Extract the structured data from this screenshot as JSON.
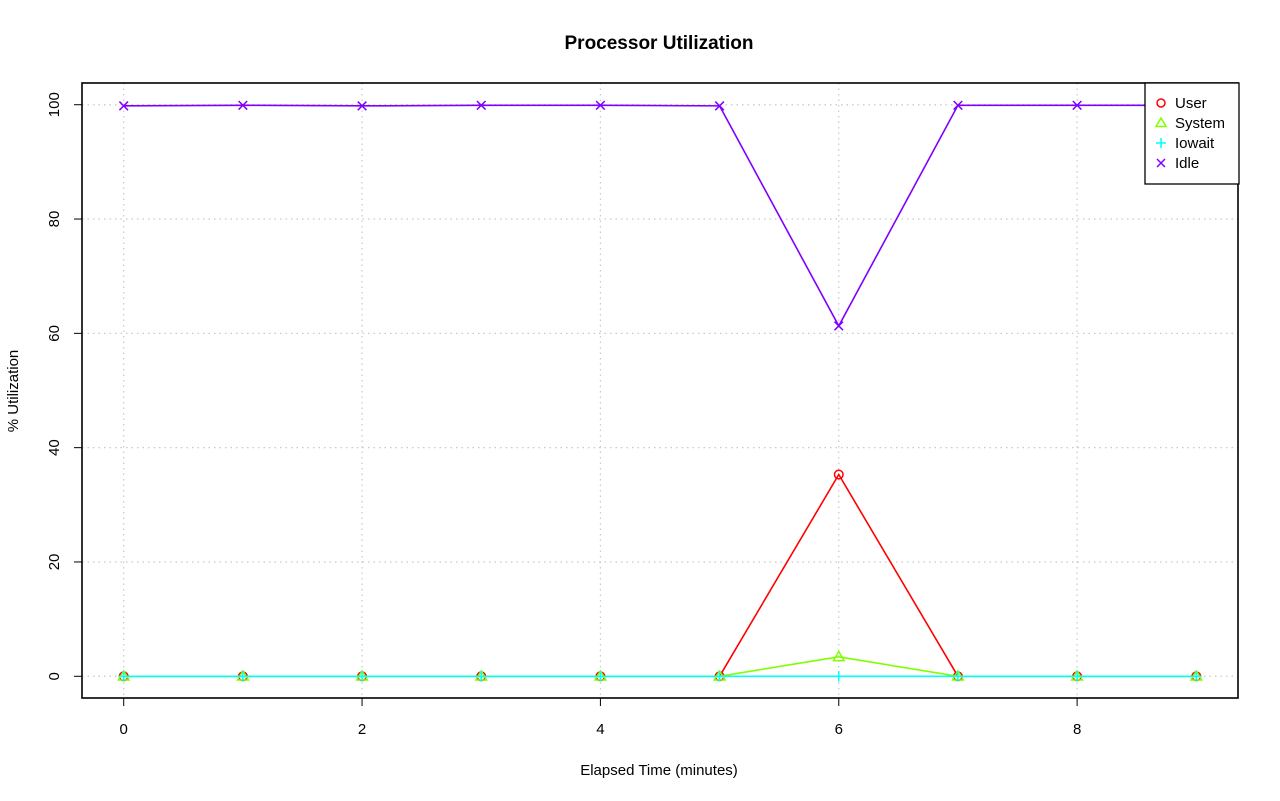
{
  "chart_data": {
    "type": "line",
    "title": "Processor Utilization",
    "xlabel": "Elapsed Time (minutes)",
    "ylabel": "% Utilization",
    "x": [
      0,
      1,
      2,
      3,
      4,
      5,
      6,
      7,
      8,
      9
    ],
    "xlim": [
      -0.35,
      9.35
    ],
    "ylim": [
      -3.8,
      103.8
    ],
    "xticks": [
      0,
      2,
      4,
      6,
      8
    ],
    "yticks": [
      0,
      20,
      40,
      60,
      80,
      100
    ],
    "grid": true,
    "legend_position": "top-right",
    "series": [
      {
        "name": "User",
        "color": "#ff0000",
        "marker": "circle",
        "values": [
          0,
          0,
          0,
          0,
          0,
          0,
          35.3,
          0,
          0,
          0
        ]
      },
      {
        "name": "System",
        "color": "#80ff00",
        "marker": "triangle",
        "values": [
          0,
          0,
          0,
          0,
          0,
          0,
          3.4,
          0,
          0,
          0
        ]
      },
      {
        "name": "Iowait",
        "color": "#00ffff",
        "marker": "plus",
        "values": [
          0,
          0,
          0,
          0,
          0,
          0,
          0,
          0,
          0,
          0
        ]
      },
      {
        "name": "Idle",
        "color": "#8000ff",
        "marker": "cross",
        "values": [
          99.8,
          99.9,
          99.8,
          99.9,
          99.9,
          99.8,
          61.3,
          99.9,
          99.9,
          99.9
        ]
      }
    ]
  }
}
